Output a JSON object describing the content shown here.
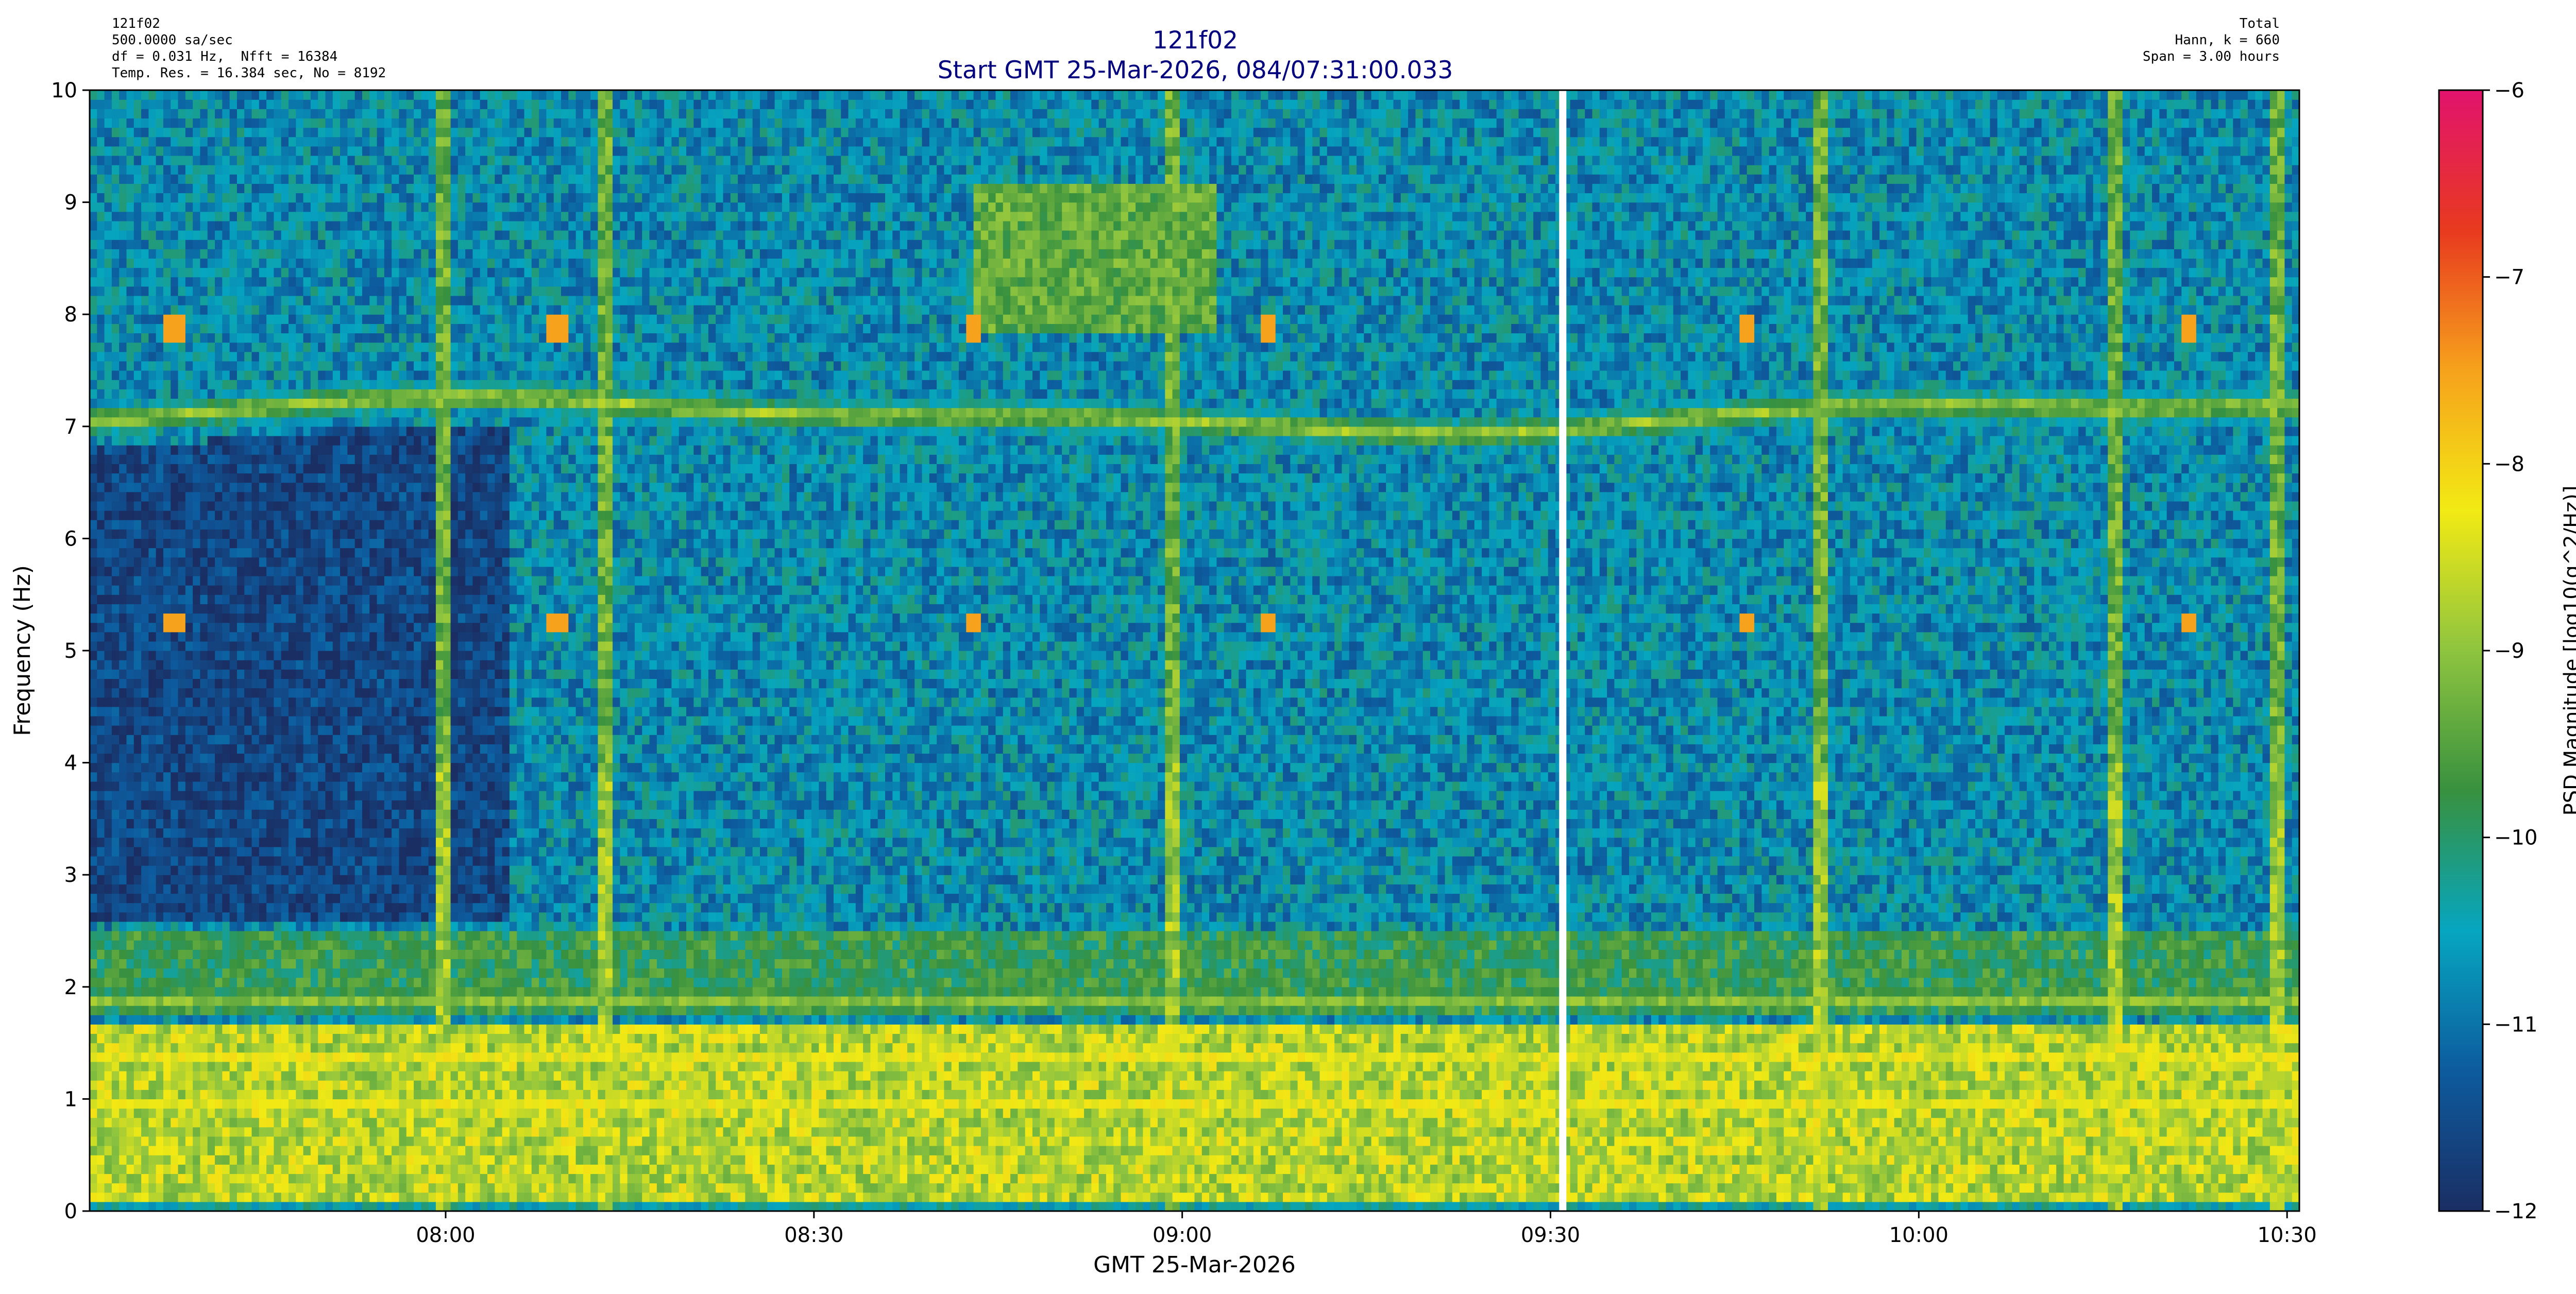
{
  "header_left": [
    "121f02",
    "500.0000 sa/sec",
    "df = 0.031 Hz,  Nfft = 16384",
    "Temp. Res. = 16.384 sec, No = 8192"
  ],
  "header_right": [
    "Total",
    "Hann, k = 660",
    "Span = 3.00 hours"
  ],
  "title": "121f02",
  "subtitle": "Start GMT 25-Mar-2026, 084/07:31:00.033",
  "chart_data": {
    "type": "heatmap",
    "title": "121f02",
    "subtitle": "Start GMT 25-Mar-2026, 084/07:31:00.033",
    "xlabel": "GMT 25-Mar-2026",
    "ylabel": "Frequency (Hz)",
    "colorbar_label": "PSD Magnitude [log10(g^2/Hz)]",
    "x_unit": "GMT time of day",
    "xlim": [
      "07:31",
      "10:31"
    ],
    "ylim": [
      0,
      10
    ],
    "clim": [
      -12,
      -6
    ],
    "x_ticks": [
      "08:00",
      "08:30",
      "09:00",
      "09:30",
      "10:00",
      "10:30"
    ],
    "y_ticks": [
      "0",
      "1",
      "2",
      "3",
      "4",
      "5",
      "6",
      "7",
      "8",
      "9",
      "10"
    ],
    "colorbar_ticks": [
      "−12",
      "−11",
      "−10",
      "−9",
      "−8",
      "−7",
      "−6"
    ],
    "colormap": [
      "#1a2e63",
      "#0d5b9e",
      "#06a6c0",
      "#38913f",
      "#8ec43f",
      "#f2ea14",
      "#f6a21c",
      "#e83a1f",
      "#e2136d"
    ],
    "data_gap": "09:31",
    "features": [
      {
        "feature": "background",
        "psd": -10.7
      },
      {
        "feature": "low-frequency band",
        "freq_range_hz": [
          0.1,
          1.7
        ],
        "psd": -8.7
      },
      {
        "feature": "strong line",
        "freq_hz": 1.38,
        "psd": -7.6
      },
      {
        "feature": "line",
        "freq_hz": 0.95,
        "psd": -8.3
      },
      {
        "feature": "line",
        "freq_hz": 1.88,
        "psd": -9.0
      },
      {
        "feature": "band",
        "freq_range_hz": [
          1.75,
          2.5
        ],
        "psd": -9.8
      },
      {
        "feature": "wandering tone",
        "freq_hz_range": [
          6.95,
          7.25
        ],
        "psd": -8.9
      },
      {
        "feature": "low-level region",
        "time_range": [
          "07:31",
          "08:05"
        ],
        "freq_range_hz": [
          2.6,
          7.3
        ],
        "psd": -11.6
      },
      {
        "feature": "periodic spikes",
        "freq_hz": [
          5.25,
          7.85
        ],
        "times": [
          "07:38",
          "08:09",
          "08:43",
          "09:07",
          "09:46",
          "10:22"
        ],
        "psd": -7.5
      },
      {
        "feature": "elevated patch",
        "time_range": [
          "08:43",
          "09:03"
        ],
        "freq_range_hz": [
          7.8,
          9.2
        ],
        "psd": -9.4
      },
      {
        "feature": "broadband transients",
        "times": [
          "08:00",
          "08:13",
          "08:59",
          "09:52",
          "10:16",
          "10:29"
        ]
      }
    ]
  }
}
